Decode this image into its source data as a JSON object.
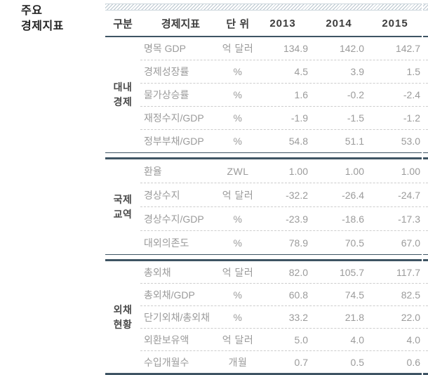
{
  "page_title": {
    "line1": "주요",
    "line2": "경제지표"
  },
  "colors": {
    "rule_dark": "#3e5463",
    "rule_light_dashed": "#cdcdcd",
    "hatch_stripe": "#b9c5ce",
    "header_text": "#3d3d3d",
    "body_text": "#9b9b9b",
    "group_label_text": "#4a4a4a"
  },
  "table": {
    "headers": {
      "category": "구분",
      "indicator": "경제지표",
      "unit": "단 위",
      "years": [
        "2013",
        "2014",
        "2015"
      ]
    },
    "groups": [
      {
        "category_line1": "대내",
        "category_line2": "경제",
        "rows": [
          {
            "label": "명목 GDP",
            "unit": "억 달러",
            "values": [
              "134.9",
              "142.0",
              "142.7"
            ]
          },
          {
            "label": "경제성장률",
            "unit": "%",
            "values": [
              "4.5",
              "3.9",
              "1.5"
            ]
          },
          {
            "label": "물가상승률",
            "unit": "%",
            "values": [
              "1.6",
              "-0.2",
              "-2.4"
            ]
          },
          {
            "label": "재정수지/GDP",
            "unit": "%",
            "values": [
              "-1.9",
              "-1.5",
              "-1.2"
            ]
          },
          {
            "label": "정부부채/GDP",
            "unit": "%",
            "values": [
              "54.8",
              "51.1",
              "53.0"
            ]
          }
        ]
      },
      {
        "category_line1": "국제",
        "category_line2": "교역",
        "rows": [
          {
            "label": "환율",
            "unit": "ZWL",
            "values": [
              "1.00",
              "1.00",
              "1.00"
            ]
          },
          {
            "label": "경상수지",
            "unit": "억 달러",
            "values": [
              "-32.2",
              "-26.4",
              "-24.7"
            ]
          },
          {
            "label": "경상수지/GDP",
            "unit": "%",
            "values": [
              "-23.9",
              "-18.6",
              "-17.3"
            ]
          },
          {
            "label": "대외의존도",
            "unit": "%",
            "values": [
              "78.9",
              "70.5",
              "67.0"
            ]
          }
        ]
      },
      {
        "category_line1": "외채",
        "category_line2": "현황",
        "rows": [
          {
            "label": "총외채",
            "unit": "억 달러",
            "values": [
              "82.0",
              "105.7",
              "117.7"
            ]
          },
          {
            "label": "총외채/GDP",
            "unit": "%",
            "values": [
              "60.8",
              "74.5",
              "82.5"
            ]
          },
          {
            "label": "단기외채/총외채",
            "unit": "%",
            "values": [
              "33.2",
              "21.8",
              "22.0"
            ]
          },
          {
            "label": "외환보유액",
            "unit": "억 달러",
            "values": [
              "5.0",
              "4.0",
              "4.0"
            ]
          },
          {
            "label": "수입개월수",
            "unit": "개월",
            "values": [
              "0.7",
              "0.5",
              "0.6"
            ]
          }
        ]
      }
    ]
  }
}
